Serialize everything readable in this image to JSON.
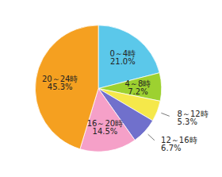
{
  "chart_data": {
    "type": "pie",
    "categories": [
      "0～4時",
      "4～8時",
      "8～12時",
      "12～16時",
      "16～20時",
      "20～24時"
    ],
    "values": [
      21.0,
      7.2,
      5.3,
      6.7,
      14.5,
      45.3
    ],
    "value_labels": [
      "21.0%",
      "7.2%",
      "5.3%",
      "6.7%",
      "14.5%",
      "45.3%"
    ],
    "colors": [
      "#5bc8ea",
      "#9dd130",
      "#f5e84a",
      "#7070cc",
      "#f5a0c8",
      "#f5a020"
    ],
    "data_labels": true
  }
}
